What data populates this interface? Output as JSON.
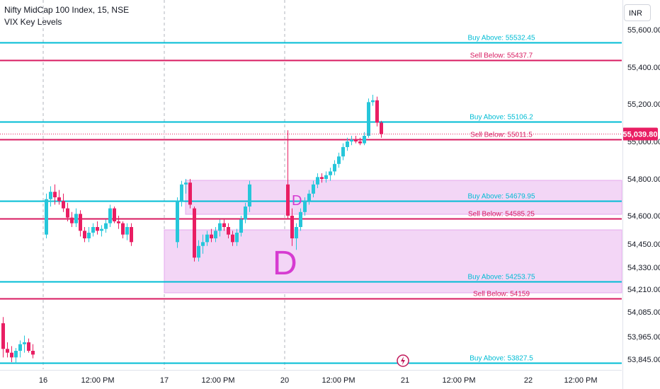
{
  "header": {
    "title": "Nifty MidCap 100 Index, 15, NSE",
    "indicator": "VIX Key Levels",
    "currency": "INR"
  },
  "colors": {
    "up": "#26c6da",
    "down": "#e91e63",
    "buy_line": "#00bcd4",
    "sell_line": "#d81b60",
    "zone": "#f3d6f6",
    "zone_border": "#e6a8ef",
    "label_D": "#d63bd1",
    "last_price_bg": "#e91e63"
  },
  "chart_data": {
    "type": "candlestick",
    "y_axis": {
      "ticks": [
        {
          "value": 55600,
          "label": "55,600.00"
        },
        {
          "value": 55400,
          "label": "55,400.00"
        },
        {
          "value": 55200,
          "label": "55,200.00"
        },
        {
          "value": 55000,
          "label": "55,000.00"
        },
        {
          "value": 54800,
          "label": "54,800.00"
        },
        {
          "value": 54600,
          "label": "54,600.00"
        },
        {
          "value": 54450,
          "label": "54,450.00"
        },
        {
          "value": 54330,
          "label": "54,330.00"
        },
        {
          "value": 54210,
          "label": "54,210.00"
        },
        {
          "value": 54085,
          "label": "54,085.00"
        },
        {
          "value": 53965,
          "label": "53,965.00"
        },
        {
          "value": 53845,
          "label": "53,845.00"
        }
      ]
    },
    "x_axis": {
      "ticks": [
        "16",
        "12:00 PM",
        "17",
        "12:00 PM",
        "20",
        "12:00 PM",
        "21",
        "12:00 PM",
        "22",
        "12:00 PM"
      ]
    },
    "last_price": {
      "value": 55039.8,
      "label": "55,039.80"
    },
    "levels": [
      {
        "type": "buy",
        "label": "Buy Above: 55532.45",
        "value": 55532.45
      },
      {
        "type": "sell",
        "label": "Sell Below: 55437.7",
        "value": 55437.7
      },
      {
        "type": "buy",
        "label": "Buy Above: 55106.2",
        "value": 55106.2
      },
      {
        "type": "sell",
        "label": "Sell Below: 55011.5",
        "value": 55011.5
      },
      {
        "type": "buy",
        "label": "Buy Above: 54679.95",
        "value": 54679.95
      },
      {
        "type": "sell",
        "label": "Sell Below: 54585.25",
        "value": 54585.25
      },
      {
        "type": "buy",
        "label": "Buy Above: 54253.75",
        "value": 54253.75
      },
      {
        "type": "sell",
        "label": "Sell Below: 54159",
        "value": 54159
      },
      {
        "type": "buy",
        "label": "Buy Above: 53827.5",
        "value": 53827.5
      }
    ],
    "zone_annotations": [
      {
        "label": "D",
        "size": "small"
      },
      {
        "label": "D",
        "size": "large"
      }
    ],
    "candles": [
      [
        54030,
        54060,
        53855,
        53900
      ],
      [
        53900,
        53935,
        53855,
        53880
      ],
      [
        53880,
        53915,
        53830,
        53855
      ],
      [
        53855,
        53905,
        53820,
        53890
      ],
      [
        53890,
        53945,
        53855,
        53925
      ],
      [
        53925,
        53970,
        53880,
        53935
      ],
      [
        53935,
        53955,
        53880,
        53890
      ],
      [
        53890,
        53925,
        53850,
        53870
      ],
      [
        54500,
        54720,
        54480,
        54690
      ],
      [
        54690,
        54760,
        54650,
        54730
      ],
      [
        54730,
        54770,
        54660,
        54700
      ],
      [
        54700,
        54740,
        54660,
        54680
      ],
      [
        54680,
        54720,
        54620,
        54640
      ],
      [
        54640,
        54670,
        54570,
        54590
      ],
      [
        54590,
        54620,
        54540,
        54560
      ],
      [
        54560,
        54640,
        54540,
        54610
      ],
      [
        54610,
        54630,
        54490,
        54520
      ],
      [
        54520,
        54540,
        54460,
        54480
      ],
      [
        54480,
        54540,
        54460,
        54510
      ],
      [
        54510,
        54560,
        54490,
        54540
      ],
      [
        54540,
        54570,
        54500,
        54520
      ],
      [
        54520,
        54550,
        54490,
        54530
      ],
      [
        54530,
        54580,
        54510,
        54560
      ],
      [
        54560,
        54660,
        54540,
        54640
      ],
      [
        54640,
        54650,
        54560,
        54570
      ],
      [
        54570,
        54600,
        54530,
        54560
      ],
      [
        54560,
        54570,
        54480,
        54500
      ],
      [
        54500,
        54560,
        54470,
        54540
      ],
      [
        54540,
        54560,
        54440,
        54460
      ],
      [
        54460,
        54700,
        54430,
        54680
      ],
      [
        54680,
        54790,
        54650,
        54770
      ],
      [
        54770,
        54800,
        54720,
        54780
      ],
      [
        54780,
        54800,
        54640,
        54660
      ],
      [
        54640,
        54650,
        54360,
        54380
      ],
      [
        54380,
        54470,
        54360,
        54440
      ],
      [
        54440,
        54500,
        54400,
        54460
      ],
      [
        54460,
        54520,
        54440,
        54500
      ],
      [
        54500,
        54530,
        54460,
        54480
      ],
      [
        54480,
        54540,
        54460,
        54520
      ],
      [
        54520,
        54580,
        54490,
        54560
      ],
      [
        54560,
        54580,
        54520,
        54540
      ],
      [
        54540,
        54560,
        54480,
        54500
      ],
      [
        54500,
        54520,
        54440,
        54460
      ],
      [
        54460,
        54530,
        54440,
        54510
      ],
      [
        54510,
        54600,
        54490,
        54580
      ],
      [
        54580,
        54670,
        54560,
        54650
      ],
      [
        54650,
        54790,
        54620,
        54770
      ],
      [
        54770,
        55060,
        54580,
        54600
      ],
      [
        54600,
        54640,
        54440,
        54480
      ],
      [
        54480,
        54560,
        54420,
        54540
      ],
      [
        54540,
        54640,
        54520,
        54620
      ],
      [
        54620,
        54700,
        54600,
        54680
      ],
      [
        54680,
        54740,
        54660,
        54720
      ],
      [
        54720,
        54790,
        54700,
        54770
      ],
      [
        54770,
        54830,
        54750,
        54810
      ],
      [
        54810,
        54830,
        54780,
        54800
      ],
      [
        54800,
        54840,
        54780,
        54820
      ],
      [
        54820,
        54860,
        54790,
        54840
      ],
      [
        54840,
        54900,
        54820,
        54880
      ],
      [
        54880,
        54940,
        54860,
        54920
      ],
      [
        54920,
        54990,
        54900,
        54970
      ],
      [
        54970,
        55020,
        54950,
        55000
      ],
      [
        55000,
        55030,
        54980,
        55010
      ],
      [
        55010,
        55030,
        54990,
        55000
      ],
      [
        55000,
        55020,
        54980,
        54990
      ],
      [
        54990,
        55050,
        54980,
        55030
      ],
      [
        55030,
        55230,
        55020,
        55210
      ],
      [
        55210,
        55250,
        55190,
        55220
      ],
      [
        55220,
        55240,
        55080,
        55100
      ],
      [
        55100,
        55110,
        55020,
        55040
      ]
    ]
  }
}
